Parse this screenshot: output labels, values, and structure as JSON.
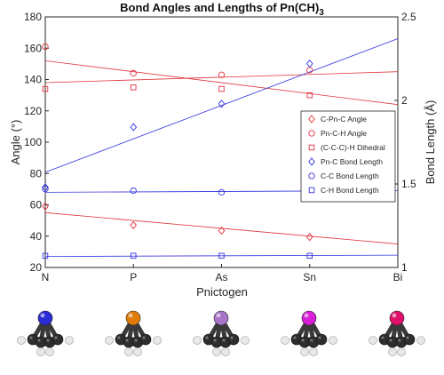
{
  "chart_data": {
    "type": "scatter",
    "title": "Bond Angles and Lengths of Pn(CH)",
    "title_subscript": "3",
    "xlabel": "Pnictogen",
    "ylabel_left": "Angle (°)",
    "ylabel_right": "Bond Length (Å)",
    "categories": [
      "N",
      "P",
      "As",
      "Sn",
      "Bi"
    ],
    "y_left": {
      "range": [
        20,
        180
      ],
      "ticks": [
        20,
        40,
        60,
        80,
        100,
        120,
        140,
        160,
        180
      ]
    },
    "y_right": {
      "range": [
        1,
        2.5
      ],
      "ticks": [
        1,
        1.5,
        2,
        2.5
      ]
    },
    "grid": false,
    "legend_position": "right",
    "series": [
      {
        "name": "C-Pn-C Angle",
        "axis": "left",
        "marker": "diamond",
        "color": "#e0333a",
        "x": [
          "N",
          "P",
          "As",
          "Sn"
        ],
        "values": [
          59,
          47,
          43.5,
          39.5
        ],
        "trend": [
          55,
          35
        ]
      },
      {
        "name": "Pn-C-H Angle",
        "axis": "left",
        "marker": "circle",
        "color": "#e0333a",
        "x": [
          "N",
          "P",
          "As",
          "Sn"
        ],
        "values": [
          161,
          144,
          143,
          146
        ],
        "trend": [
          152,
          124
        ]
      },
      {
        "name": "(C-C-C)-H Dihedral",
        "axis": "left",
        "marker": "square",
        "color": "#e0333a",
        "x": [
          "N",
          "P",
          "As",
          "Sn"
        ],
        "values": [
          134,
          135,
          134,
          130
        ],
        "trend": [
          138,
          145
        ]
      },
      {
        "name": "Pn-C Bond Length",
        "axis": "right",
        "marker": "diamond",
        "color": "#3333e0",
        "x": [
          "N",
          "P",
          "As",
          "Sn"
        ],
        "values": [
          1.48,
          1.84,
          1.98,
          2.22
        ],
        "trend": [
          1.57,
          2.37
        ]
      },
      {
        "name": "C-C Bond Length",
        "axis": "right",
        "marker": "circle",
        "color": "#3333e0",
        "x": [
          "N",
          "P",
          "As",
          "Sn"
        ],
        "values": [
          1.47,
          1.46,
          1.45,
          1.46
        ],
        "trend": [
          1.45,
          1.46
        ]
      },
      {
        "name": "C-H Bond Length",
        "axis": "right",
        "marker": "square",
        "color": "#3333e0",
        "x": [
          "N",
          "P",
          "As",
          "Sn"
        ],
        "values": [
          1.07,
          1.07,
          1.07,
          1.07
        ],
        "trend": [
          1.066,
          1.074
        ]
      }
    ]
  },
  "molecules": [
    {
      "element": "N",
      "color": "#2b2bd6"
    },
    {
      "element": "P",
      "color": "#e07b0a"
    },
    {
      "element": "As",
      "color": "#a874c8"
    },
    {
      "element": "Sn",
      "color": "#d81ed8"
    },
    {
      "element": "Bi",
      "color": "#e0106a"
    }
  ]
}
